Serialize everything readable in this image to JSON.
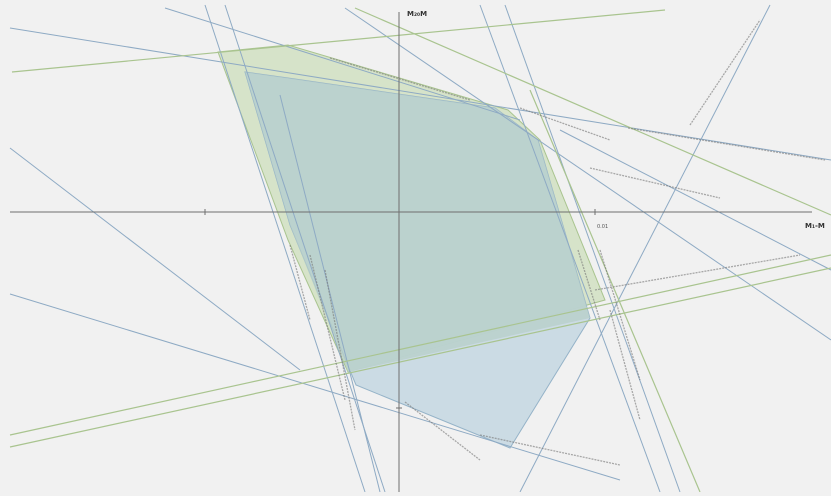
{
  "axes": {
    "x_label": "M₁-M",
    "y_label": "M₂₀M",
    "x_tick_label": "0.01"
  },
  "regions": [
    {
      "name": "outer-feasible-region",
      "fill": "#d6e3c9",
      "stroke": "#a9c48f"
    },
    {
      "name": "inner-feasible-region",
      "fill": "#c6d8e2",
      "stroke": "#95b3c8"
    }
  ],
  "colors": {
    "blue_line": "#8eaac4",
    "green_line": "#a9c48f",
    "axis": "#6f6f6f",
    "background": "#f1f1f1"
  }
}
